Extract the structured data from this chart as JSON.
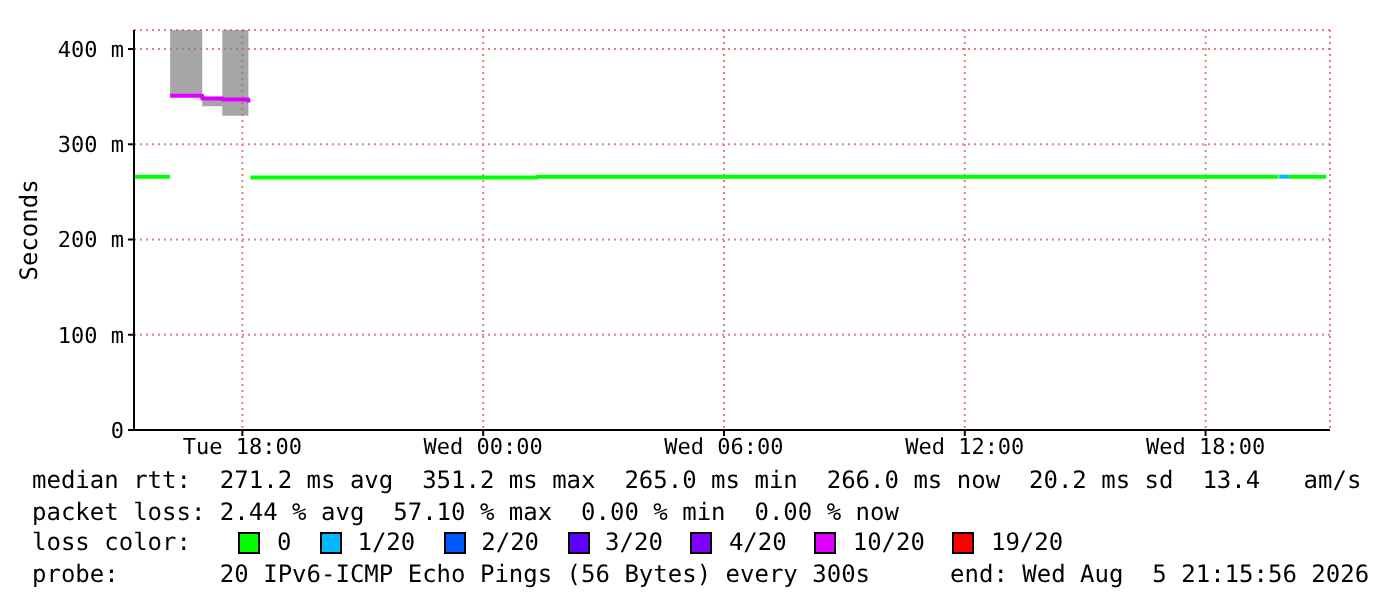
{
  "chart_data": {
    "type": "step",
    "ylabel": "Seconds",
    "xlim": [
      "2026-08-04T15:18",
      "2026-08-05T21:06"
    ],
    "xticks": [
      {
        "value": "2026-08-04T18:00",
        "label": "Tue 18:00"
      },
      {
        "value": "2026-08-05T00:00",
        "label": "Wed 00:00"
      },
      {
        "value": "2026-08-05T06:00",
        "label": "Wed 06:00"
      },
      {
        "value": "2026-08-05T12:00",
        "label": "Wed 12:00"
      },
      {
        "value": "2026-08-05T18:00",
        "label": "Wed 18:00"
      }
    ],
    "ylim": [
      0,
      420
    ],
    "yticks": [
      0,
      {
        "value": 100,
        "label": "100 m"
      },
      {
        "value": 200,
        "label": "200 m"
      },
      {
        "value": 300,
        "label": "300 m"
      },
      {
        "value": 400,
        "label": "400 m"
      }
    ],
    "grid": true,
    "legend": "bottom",
    "legend_title": "loss color:",
    "series": [
      {
        "name": "0",
        "color": "#00ff00",
        "x": [
          "2026-08-04T15:18",
          "2026-08-04T16:12",
          "2026-08-04T16:15",
          "2026-08-04T18:12",
          "2026-08-05T01:21",
          "2026-08-05T19:49",
          "2026-08-05T19:50",
          "2026-08-05T20:05",
          "2026-08-05T21:00"
        ],
        "values": [
          266,
          266,
          null,
          265,
          266,
          266,
          null,
          266,
          266
        ]
      },
      {
        "name": "1/20",
        "color": "#00b8ff",
        "x": [
          "2026-08-05T19:50",
          "2026-08-05T20:05"
        ],
        "values": [
          266,
          266
        ]
      },
      {
        "name": "2/20",
        "color": "#0059ff"
      },
      {
        "name": "3/20",
        "color": "#5e00ff"
      },
      {
        "name": "4/20",
        "color": "#7e00ff"
      },
      {
        "name": "10/20",
        "color": "#dd00ff",
        "x": [
          "2026-08-04T16:12",
          "2026-08-04T17:00",
          "2026-08-04T17:30",
          "2026-08-04T18:09"
        ],
        "values": [
          351,
          348,
          347,
          344
        ],
        "lower": [
          350,
          340,
          330,
          310
        ],
        "upper": [
          420,
          350,
          420,
          420
        ]
      },
      {
        "name": "19/20",
        "color": "#ff0000"
      }
    ],
    "annotations": [
      "median rtt:  271.2 ms avg  351.2 ms max  265.0 ms min  266.0 ms now  20.2 ms sd  13.4   am/s",
      "packet loss: 2.44 % avg  57.10 % max  0.00 % min  0.00 % now",
      "probe:       20 IPv6-ICMP Echo Pings (56 Bytes) every 300s",
      "end: Wed Aug  5 21:15:56 2026"
    ]
  }
}
